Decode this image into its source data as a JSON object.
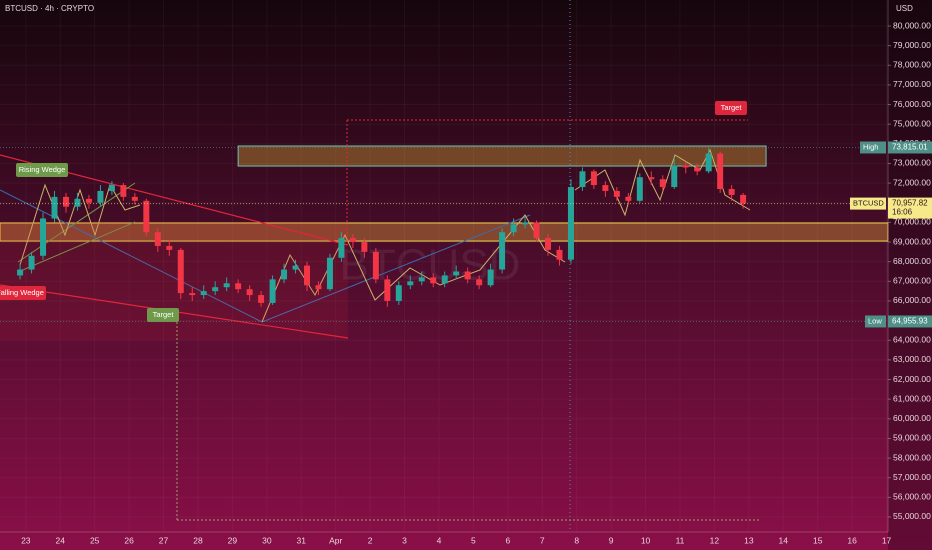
{
  "chart_data": {
    "type": "candlestick",
    "title": "BTCUSD · 4h · CRYPTO",
    "currency": "USD",
    "watermark": "BTCUSD",
    "up_color": "#26a69a",
    "down_color": "#f23645",
    "xlim": [
      -18,
      601
    ],
    "ylim": [
      54236,
      81324
    ],
    "xticks": [
      {
        "value": 0,
        "label": "23"
      },
      {
        "value": 24,
        "label": "24"
      },
      {
        "value": 48,
        "label": "25"
      },
      {
        "value": 72,
        "label": "26"
      },
      {
        "value": 96,
        "label": "27"
      },
      {
        "value": 120,
        "label": "28"
      },
      {
        "value": 144,
        "label": "29"
      },
      {
        "value": 168,
        "label": "30"
      },
      {
        "value": 192,
        "label": "31"
      },
      {
        "value": 216,
        "label": "Apr"
      },
      {
        "value": 240,
        "label": "2"
      },
      {
        "value": 264,
        "label": "3"
      },
      {
        "value": 288,
        "label": "4"
      },
      {
        "value": 312,
        "label": "5"
      },
      {
        "value": 336,
        "label": "6"
      },
      {
        "value": 360,
        "label": "7"
      },
      {
        "value": 384,
        "label": "8"
      },
      {
        "value": 408,
        "label": "9"
      },
      {
        "value": 432,
        "label": "10"
      },
      {
        "value": 456,
        "label": "11"
      },
      {
        "value": 480,
        "label": "12"
      },
      {
        "value": 504,
        "label": "13"
      },
      {
        "value": 528,
        "label": "14"
      },
      {
        "value": 552,
        "label": "15"
      },
      {
        "value": 576,
        "label": "16"
      },
      {
        "value": 600,
        "label": "17"
      }
    ],
    "yticks": [
      {
        "value": 55000,
        "label": "55,000.00"
      },
      {
        "value": 56000,
        "label": "56,000.00"
      },
      {
        "value": 57000,
        "label": "57,000.00"
      },
      {
        "value": 58000,
        "label": "58,000.00"
      },
      {
        "value": 59000,
        "label": "59,000.00"
      },
      {
        "value": 60000,
        "label": "60,000.00"
      },
      {
        "value": 61000,
        "label": "61,000.00"
      },
      {
        "value": 62000,
        "label": "62,000.00"
      },
      {
        "value": 63000,
        "label": "63,000.00"
      },
      {
        "value": 64000,
        "label": "64,000.00"
      },
      {
        "value": 65000,
        "label": "65,000.00"
      },
      {
        "value": 66000,
        "label": "66,000.00"
      },
      {
        "value": 67000,
        "label": "67,000.00"
      },
      {
        "value": 68000,
        "label": "68,000.00"
      },
      {
        "value": 69000,
        "label": "69,000.00"
      },
      {
        "value": 70000,
        "label": "70,000.00"
      },
      {
        "value": 71000,
        "label": "71,000.00"
      },
      {
        "value": 72000,
        "label": "72,000.00"
      },
      {
        "value": 73000,
        "label": "73,000.00"
      },
      {
        "value": 74000,
        "label": "74,000.00"
      },
      {
        "value": 75000,
        "label": "75,000.00"
      },
      {
        "value": 76000,
        "label": "76,000.00"
      },
      {
        "value": 77000,
        "label": "77,000.00"
      },
      {
        "value": 78000,
        "label": "78,000.00"
      },
      {
        "value": 79000,
        "label": "79,000.00"
      },
      {
        "value": 80000,
        "label": "80,000.00"
      }
    ],
    "candles": {
      "x": [
        -4,
        4,
        12,
        20,
        28,
        36,
        44,
        52,
        60,
        68,
        76,
        84,
        92,
        100,
        108,
        116,
        124,
        132,
        140,
        148,
        156,
        164,
        172,
        180,
        188,
        196,
        204,
        212,
        220,
        228,
        236,
        244,
        252,
        260,
        268,
        276,
        284,
        292,
        300,
        308,
        316,
        324,
        332,
        340,
        348,
        356,
        364,
        372,
        380,
        388,
        396,
        404,
        412,
        420,
        428,
        436,
        444,
        452,
        460,
        468,
        476,
        484,
        492,
        500
      ],
      "open": [
        67300,
        67600,
        68300,
        70200,
        71300,
        70800,
        71200,
        71000,
        71600,
        71900,
        71300,
        71100,
        69500,
        68800,
        68600,
        66400,
        66300,
        66500,
        66700,
        66900,
        66600,
        66300,
        65900,
        67100,
        67600,
        67800,
        66800,
        66600,
        68200,
        69200,
        69000,
        68500,
        67100,
        66000,
        66800,
        67000,
        67200,
        66900,
        67300,
        67500,
        67100,
        66800,
        67600,
        69500,
        69900,
        70000,
        69200,
        68600,
        68100,
        71800,
        72600,
        71900,
        71600,
        71300,
        71100,
        72300,
        72200,
        71800,
        72900,
        72800,
        72600,
        73500,
        71700,
        71400
      ],
      "high": [
        67900,
        68500,
        70500,
        71600,
        71500,
        71500,
        71400,
        71900,
        72100,
        72000,
        71500,
        71200,
        69700,
        69100,
        68700,
        66700,
        66800,
        67000,
        67200,
        67100,
        66800,
        66500,
        67300,
        67900,
        68100,
        68000,
        67000,
        68400,
        69500,
        69400,
        69200,
        68700,
        67300,
        67000,
        67300,
        67500,
        67400,
        67500,
        67800,
        67700,
        67300,
        67900,
        69700,
        70200,
        70300,
        70100,
        69400,
        68800,
        72200,
        72800,
        72700,
        72100,
        71800,
        71500,
        72500,
        72600,
        72400,
        73300,
        73100,
        73000,
        73800,
        73600,
        71900,
        71500
      ],
      "low": [
        67100,
        67400,
        68100,
        70000,
        70500,
        70600,
        70700,
        70800,
        71400,
        71100,
        70900,
        69300,
        68500,
        68300,
        66100,
        66000,
        66100,
        66300,
        66500,
        66400,
        66000,
        65700,
        65800,
        66900,
        67400,
        66500,
        66300,
        66500,
        68000,
        68700,
        68200,
        66900,
        65700,
        65800,
        66600,
        66800,
        66700,
        66700,
        67100,
        66900,
        66600,
        66700,
        67400,
        69300,
        69700,
        69000,
        68300,
        67800,
        67900,
        71600,
        71700,
        71300,
        71100,
        70900,
        71000,
        71900,
        71600,
        71700,
        72500,
        72400,
        72500,
        71500,
        71100,
        70700
      ],
      "close": [
        67600,
        68300,
        70200,
        71300,
        70800,
        71200,
        71000,
        71600,
        71900,
        71300,
        71100,
        69500,
        68800,
        68600,
        66400,
        66300,
        66500,
        66700,
        66900,
        66600,
        66300,
        65900,
        67100,
        67600,
        67800,
        66800,
        66600,
        68200,
        69200,
        69000,
        68500,
        67100,
        66000,
        66800,
        67000,
        67200,
        66900,
        67300,
        67500,
        67100,
        66800,
        67600,
        69500,
        69900,
        70000,
        69200,
        68600,
        68100,
        71800,
        72600,
        71900,
        71600,
        71300,
        71100,
        72300,
        72200,
        71800,
        72900,
        72800,
        72600,
        73500,
        71700,
        71400,
        70958
      ]
    },
    "zones": [
      {
        "low": 72870,
        "high": 73890,
        "from": 148,
        "to": 516,
        "color": "#8a5a2a"
      },
      {
        "low": 69050,
        "high": 69970,
        "from": -18,
        "to": 601,
        "color": "#9a5a30"
      }
    ],
    "price_labels": [
      {
        "name": "High",
        "value": 73815.01,
        "label": "73,815.01",
        "color": "#4e8f88"
      },
      {
        "name": "BTCUSD",
        "value": 70957.82,
        "label": "70,957.82",
        "time": "16:06",
        "color": "#f5e98a"
      },
      {
        "name": "Low",
        "value": 64955.93,
        "label": "64,955.93",
        "color": "#4e8f88"
      }
    ],
    "annotations": [
      {
        "text": "Target",
        "color": "#e0263c"
      },
      {
        "text": "Rising Wedge",
        "color": "#6f9a4a"
      },
      {
        "text": "Falling Wedge",
        "color": "#e0263c"
      },
      {
        "text": "Target",
        "color": "#6f9a4a"
      }
    ]
  }
}
